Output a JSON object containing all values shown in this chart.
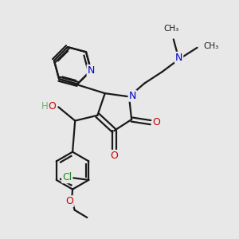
{
  "background_color": "#e8e8e8",
  "bond_color": "#1a1a1a",
  "lw": 1.6,
  "xlim": [
    0.0,
    5.5
  ],
  "ylim": [
    -1.2,
    4.5
  ],
  "figsize": [
    3.0,
    3.0
  ],
  "dpi": 100
}
